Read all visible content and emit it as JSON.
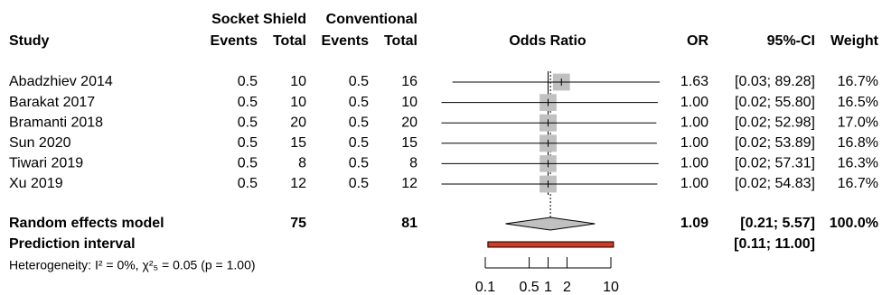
{
  "chart_data": {
    "type": "forest",
    "headers": {
      "group_1": "Socket Shield",
      "group_2": "Conventional",
      "study": "Study",
      "events_1": "Events",
      "total_1": "Total",
      "events_2": "Events",
      "total_2": "Total",
      "plot": "Odds Ratio",
      "or": "OR",
      "ci": "95%-CI",
      "weight": "Weight"
    },
    "studies": [
      {
        "name": "Abadzhiev 2014",
        "events_1": 0.5,
        "total_1": 10,
        "events_2": 0.5,
        "total_2": 16,
        "or": 1.63,
        "or_label": "1.63",
        "ci_lower": 0.03,
        "ci_upper": 89.28,
        "ci_label": "[0.03; 89.28]",
        "weight": 16.7,
        "weight_label": "16.7%"
      },
      {
        "name": "Barakat 2017",
        "events_1": 0.5,
        "total_1": 10,
        "events_2": 0.5,
        "total_2": 10,
        "or": 1,
        "or_label": "1.00",
        "ci_lower": 0.02,
        "ci_upper": 55.8,
        "ci_label": "[0.02; 55.80]",
        "weight": 16.5,
        "weight_label": "16.5%"
      },
      {
        "name": "Bramanti 2018",
        "events_1": 0.5,
        "total_1": 20,
        "events_2": 0.5,
        "total_2": 20,
        "or": 1,
        "or_label": "1.00",
        "ci_lower": 0.02,
        "ci_upper": 52.98,
        "ci_label": "[0.02; 52.98]",
        "weight": 17,
        "weight_label": "17.0%"
      },
      {
        "name": "Sun 2020",
        "events_1": 0.5,
        "total_1": 15,
        "events_2": 0.5,
        "total_2": 15,
        "or": 1,
        "or_label": "1.00",
        "ci_lower": 0.02,
        "ci_upper": 53.89,
        "ci_label": "[0.02; 53.89]",
        "weight": 16.8,
        "weight_label": "16.8%"
      },
      {
        "name": "Tiwari 2019",
        "events_1": 0.5,
        "total_1": 8,
        "events_2": 0.5,
        "total_2": 8,
        "or": 1,
        "or_label": "1.00",
        "ci_lower": 0.02,
        "ci_upper": 57.31,
        "ci_label": "[0.02; 57.31]",
        "weight": 16.3,
        "weight_label": "16.3%"
      },
      {
        "name": "Xu 2019",
        "events_1": 0.5,
        "total_1": 12,
        "events_2": 0.5,
        "total_2": 12,
        "or": 1,
        "or_label": "1.00",
        "ci_lower": 0.02,
        "ci_upper": 54.83,
        "ci_label": "[0.02; 54.83]",
        "weight": 16.7,
        "weight_label": "16.7%"
      }
    ],
    "summary": {
      "name": "Random effects model",
      "total_1": 75,
      "total_2": 81,
      "or": 1.09,
      "or_label": "1.09",
      "ci_lower": 0.21,
      "ci_upper": 5.57,
      "ci_label": "[0.21;  5.57]",
      "weight": 100,
      "weight_label": "100.0%"
    },
    "prediction": {
      "name": "Prediction interval",
      "lower": 0.11,
      "upper": 11,
      "label": "[0.11; 11.00]"
    },
    "heterogeneity": "Heterogeneity: I² = 0%, χ²₅ = 0.05 (p = 1.00)",
    "reference": 1,
    "xlim": [
      0.02,
      60
    ],
    "xticks": [
      0.1,
      0.5,
      1,
      2,
      10
    ],
    "log_x": true,
    "box_color": "#c0c0c0",
    "diamond_color": "#c0c0c0",
    "prediction_color": "#d33a24"
  }
}
